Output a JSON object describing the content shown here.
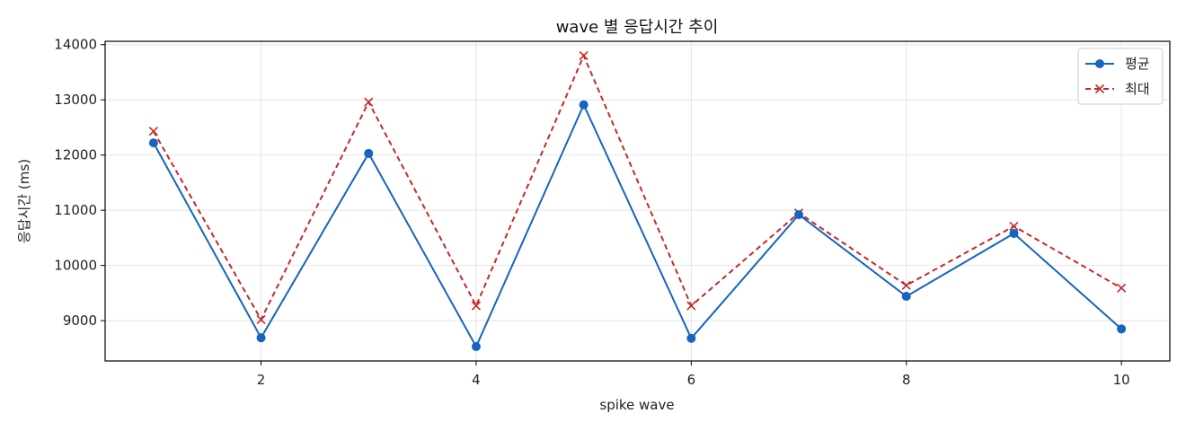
{
  "chart_data": {
    "type": "line",
    "title": "wave 별 응답시간 추이",
    "xlabel": "spike wave",
    "ylabel": "응답시간 (ms)",
    "xlim": [
      0.55,
      10.45
    ],
    "ylim": [
      8270,
      14060
    ],
    "xticks": [
      2,
      4,
      6,
      8,
      10
    ],
    "yticks": [
      9000,
      10000,
      11000,
      12000,
      13000,
      14000
    ],
    "grid": true,
    "legend_position": "top-right",
    "x": [
      1,
      2,
      3,
      4,
      5,
      6,
      7,
      8,
      9,
      10
    ],
    "series": [
      {
        "name": "평균",
        "color": "#1565c0",
        "marker": "circle",
        "line_style": "solid",
        "values": [
          12220,
          8690,
          12030,
          8530,
          12910,
          8680,
          10920,
          9440,
          10580,
          8850
        ]
      },
      {
        "name": "최대",
        "color": "#c62828",
        "marker": "x",
        "line_style": "dashed",
        "values": [
          12430,
          9020,
          12960,
          9270,
          13800,
          9270,
          10950,
          9640,
          10710,
          9590
        ]
      }
    ]
  }
}
